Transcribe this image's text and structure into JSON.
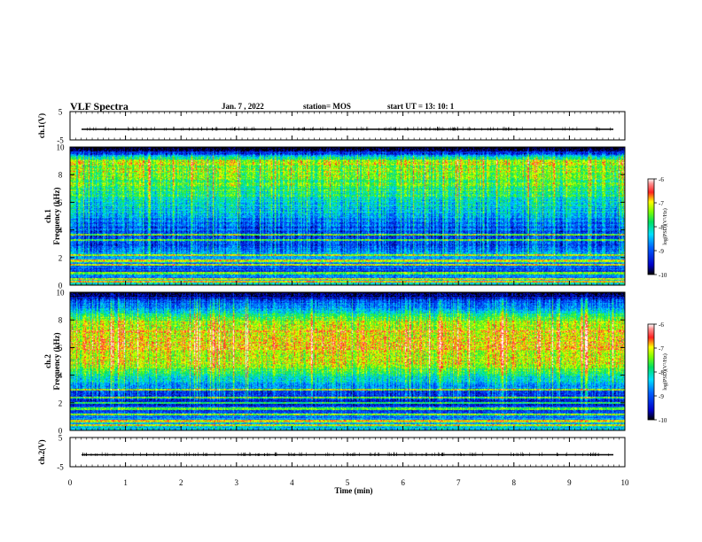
{
  "header": {
    "title": "VLF Spectra",
    "date": "Jan. 7 , 2022",
    "station": "station= MOS",
    "start": "start  UT =   13: 10: 1"
  },
  "chart_data": [
    {
      "type": "line",
      "panel": "ch1-waveform",
      "ylabel": "ch.1(V)",
      "ylim": [
        -5,
        5
      ],
      "yticks": [
        "5",
        "-5"
      ],
      "xlim": [
        0,
        10
      ],
      "baseline": 0
    },
    {
      "type": "heatmap",
      "panel": "ch1-spectrogram",
      "ylabel": "ch.1\nFrequency (kHz)",
      "ylim": [
        0,
        10
      ],
      "yticks": [
        "0",
        "2",
        "4",
        "6",
        "8",
        "10"
      ],
      "xlim": [
        0,
        10
      ],
      "colorbar": {
        "label": "log(PSD)(V²/Hz)",
        "ticks": [
          "-6",
          "-7",
          "-8",
          "-9",
          "-10"
        ],
        "range": [
          -10,
          -6
        ]
      },
      "profile_khz": [
        0,
        1,
        2,
        3,
        4,
        5,
        6,
        7,
        8,
        9,
        9.7,
        10
      ],
      "profile_log_psd": [
        -8.0,
        -9.2,
        -8.5,
        -9.2,
        -9.0,
        -8.6,
        -8.2,
        -7.8,
        -7.5,
        -7.3,
        -9.6,
        -10.0
      ],
      "lines_khz": [
        0.3,
        0.5,
        0.9,
        1.5,
        1.8,
        2.2,
        3.3,
        3.7
      ]
    },
    {
      "type": "heatmap",
      "panel": "ch2-spectrogram",
      "ylabel": "ch.2\nFrequency (kHz)",
      "ylim": [
        0,
        10
      ],
      "yticks": [
        "0",
        "2",
        "4",
        "6",
        "8",
        "10"
      ],
      "xlim": [
        0,
        10
      ],
      "colorbar": {
        "label": "log(PSD)(V²/Hz)",
        "ticks": [
          "-6",
          "-7",
          "-8",
          "-9",
          "-10"
        ],
        "range": [
          -10,
          -6
        ]
      },
      "profile_khz": [
        0,
        1,
        2,
        3,
        4,
        5,
        6,
        7,
        8,
        9,
        9.7,
        10
      ],
      "profile_log_psd": [
        -8.2,
        -8.8,
        -9.3,
        -8.8,
        -7.9,
        -7.1,
        -6.9,
        -6.9,
        -7.4,
        -8.6,
        -9.6,
        -10.0
      ],
      "lines_khz": [
        0.4,
        0.7,
        1.2,
        1.6,
        2.0,
        2.4,
        3.0
      ]
    },
    {
      "type": "line",
      "panel": "ch2-waveform",
      "ylabel": "ch.2(V)",
      "ylim": [
        -5,
        5
      ],
      "yticks": [
        "5",
        "-5"
      ],
      "xlim": [
        0,
        10
      ],
      "baseline": 0
    }
  ],
  "xaxis": {
    "label": "Time (min)",
    "ticks": [
      "0",
      "1",
      "2",
      "3",
      "4",
      "5",
      "6",
      "7",
      "8",
      "9",
      "10"
    ]
  }
}
